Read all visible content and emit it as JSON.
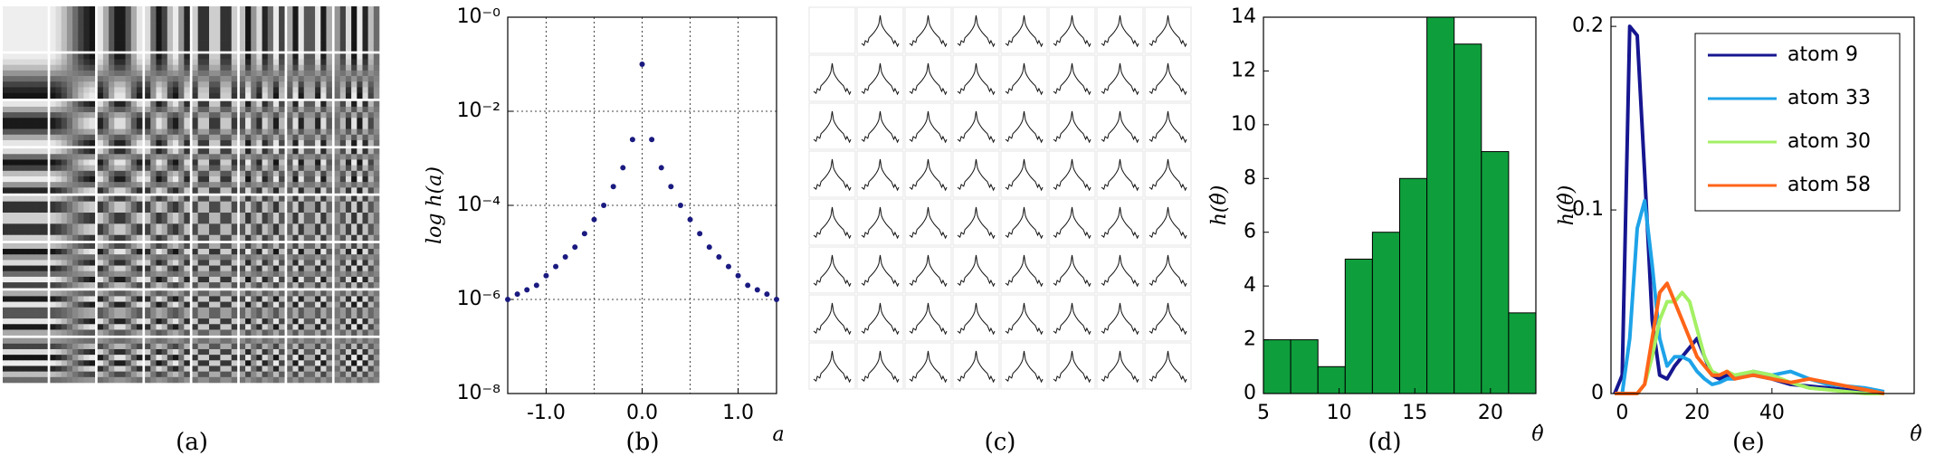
{
  "chart_data": [
    {
      "type": "image",
      "panel_label": "(a)"
    },
    {
      "type": "scatter",
      "panel_label": "(b)",
      "x_label": "a",
      "y_label": "log h(a)",
      "x": [
        -1.4,
        -1.3,
        -1.2,
        -1.1,
        -1.0,
        -0.9,
        -0.8,
        -0.7,
        -0.6,
        -0.5,
        -0.4,
        -0.3,
        -0.2,
        -0.1,
        0.0,
        0.1,
        0.2,
        0.3,
        0.4,
        0.5,
        0.6,
        0.7,
        0.8,
        0.9,
        1.0,
        1.1,
        1.2,
        1.3,
        1.4
      ],
      "values": [
        1e-06,
        1.3e-06,
        1.6e-06,
        2e-06,
        3.2e-06,
        5e-06,
        8e-06,
        1.3e-05,
        2.5e-05,
        5e-05,
        0.0001,
        0.00025,
        0.00063,
        0.0025,
        0.1,
        0.0025,
        0.00063,
        0.00025,
        0.0001,
        5e-05,
        2.5e-05,
        1.3e-05,
        8e-06,
        5e-06,
        3.2e-06,
        2e-06,
        1.6e-06,
        1.3e-06,
        1e-06
      ],
      "color": "#1a1a80",
      "log_y": true,
      "grid": true,
      "xlim": [
        -1.4,
        1.4
      ],
      "xticks": [
        {
          "value": -1,
          "label": "-1.0"
        },
        {
          "value": 0,
          "label": "0.0"
        },
        {
          "value": 1,
          "label": "1.0"
        }
      ],
      "x_minor_grid": [
        -0.5,
        0.5
      ],
      "ylim": [
        1e-08,
        1
      ],
      "yticks": [
        {
          "value": 1,
          "label": "10⁻⁰"
        },
        {
          "value": 0.01,
          "label": "10⁻²"
        },
        {
          "value": 0.0001,
          "label": "10⁻⁴"
        },
        {
          "value": 1e-06,
          "label": "10⁻⁶"
        },
        {
          "value": 1e-08,
          "label": "10⁻⁸"
        }
      ]
    },
    {
      "type": "image",
      "panel_label": "(c)"
    },
    {
      "type": "histogram",
      "panel_label": "(d)",
      "x_label": "θ̂",
      "y_label": "h(θ̂)",
      "bins": [
        5,
        6.8,
        8.6,
        10.4,
        12.2,
        14,
        15.8,
        17.6,
        19.4,
        21.2,
        23
      ],
      "values": [
        2,
        2,
        1,
        5,
        6,
        8,
        14,
        13,
        9,
        3
      ],
      "color": "#0f9e3c",
      "xlim": [
        5,
        23
      ],
      "xticks": [
        5,
        10,
        15,
        20
      ],
      "ylim": [
        0,
        14
      ],
      "yticks": [
        0,
        2,
        4,
        6,
        8,
        10,
        12,
        14
      ]
    },
    {
      "type": "line",
      "panel_label": "(e)",
      "x_label": "θ̂",
      "y_label": "h(θ̂)",
      "legend": "upper-right",
      "x": [
        -2,
        0,
        2,
        4,
        6,
        8,
        10,
        12,
        14,
        16,
        18,
        20,
        22,
        24,
        26,
        28,
        30,
        35,
        40,
        45,
        50,
        55,
        60,
        65,
        70
      ],
      "series": [
        {
          "name": "atom 9",
          "color": "#161690",
          "values": [
            0,
            0.01,
            0.2,
            0.195,
            0.12,
            0.04,
            0.01,
            0.008,
            0.015,
            0.02,
            0.025,
            0.03,
            0.02,
            0.01,
            0.008,
            0.01,
            0.01,
            0.01,
            0.008,
            0.005,
            0.004,
            0.003,
            0.002,
            0.001,
            0
          ]
        },
        {
          "name": "atom 33",
          "color": "#1ea3e8",
          "values": [
            0,
            0,
            0.03,
            0.09,
            0.105,
            0.07,
            0.03,
            0.015,
            0.02,
            0.02,
            0.018,
            0.012,
            0.008,
            0.005,
            0.006,
            0.008,
            0.008,
            0.012,
            0.01,
            0.012,
            0.008,
            0.005,
            0.004,
            0.003,
            0.001
          ]
        },
        {
          "name": "atom 30",
          "color": "#a4f064",
          "values": [
            0,
            0,
            0,
            0,
            0.005,
            0.02,
            0.04,
            0.05,
            0.05,
            0.055,
            0.05,
            0.035,
            0.02,
            0.012,
            0.01,
            0.012,
            0.01,
            0.012,
            0.01,
            0.006,
            0.003,
            0.002,
            0.001,
            0,
            0
          ]
        },
        {
          "name": "atom 58",
          "color": "#ff6418",
          "values": [
            0,
            0,
            0,
            0,
            0.005,
            0.03,
            0.055,
            0.06,
            0.05,
            0.04,
            0.03,
            0.02,
            0.015,
            0.01,
            0.01,
            0.012,
            0.008,
            0.01,
            0.008,
            0.006,
            0.008,
            0.006,
            0.004,
            0.002,
            0
          ]
        }
      ],
      "xlim": [
        -3,
        78
      ],
      "xticks": [
        0,
        20,
        40
      ],
      "ylim": [
        0,
        0.205
      ],
      "yticks": [
        0,
        0.1,
        0.2
      ]
    }
  ]
}
